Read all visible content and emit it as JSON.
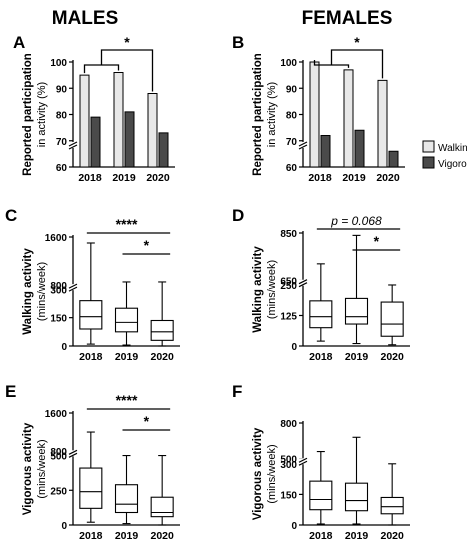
{
  "figure": {
    "column_titles": [
      "MALES",
      "FEMALES"
    ],
    "legend": [
      {
        "label": "Walking",
        "color": "#e8e8e8"
      },
      {
        "label": "Vigorous",
        "color": "#4a4a4a"
      }
    ]
  },
  "chart_data": [
    {
      "panel": "A",
      "type": "bar",
      "ylabel": "Reported participation",
      "ylabel2": "in activity (%)",
      "categories": [
        "2018",
        "2019",
        "2020"
      ],
      "ylim": [
        60,
        100
      ],
      "yticks": [
        "60",
        "70",
        "80",
        "90",
        "100"
      ],
      "series": [
        {
          "name": "Walking",
          "values": [
            95,
            96,
            88
          ]
        },
        {
          "name": "Vigorous",
          "values": [
            79,
            81,
            73
          ]
        }
      ],
      "annotations": [
        {
          "text": "*"
        }
      ]
    },
    {
      "panel": "B",
      "type": "bar",
      "ylabel": "Reported participation",
      "ylabel2": "in activity (%)",
      "categories": [
        "2018",
        "2019",
        "2020"
      ],
      "ylim": [
        60,
        100
      ],
      "yticks": [
        "60",
        "70",
        "80",
        "90",
        "100"
      ],
      "series": [
        {
          "name": "Walking",
          "values": [
            100,
            97,
            93
          ]
        },
        {
          "name": "Vigorous",
          "values": [
            72,
            74,
            66
          ]
        }
      ],
      "annotations": [
        {
          "text": "*"
        }
      ]
    },
    {
      "panel": "C",
      "type": "box",
      "ylabel": "Walking activity",
      "ylabel2": "(mins/week)",
      "categories": [
        "2018",
        "2019",
        "2020"
      ],
      "yticks": [
        "0",
        "150",
        "300",
        "800",
        "1600"
      ],
      "boxes": [
        {
          "min": 10,
          "q1": 90,
          "median": 155,
          "q3": 240,
          "max": 1500
        },
        {
          "min": 5,
          "q1": 75,
          "median": 125,
          "q3": 200,
          "max": 850
        },
        {
          "min": 0,
          "q1": 30,
          "median": 75,
          "q3": 135,
          "max": 850
        }
      ],
      "annotations": [
        {
          "text": "****"
        },
        {
          "text": "*"
        }
      ]
    },
    {
      "panel": "D",
      "type": "box",
      "ylabel": "Walking activity",
      "ylabel2": "(mins/week)",
      "categories": [
        "2018",
        "2019",
        "2020"
      ],
      "yticks": [
        "0",
        "125",
        "250",
        "650",
        "850"
      ],
      "boxes": [
        {
          "min": 20,
          "q1": 75,
          "median": 120,
          "q3": 185,
          "max": 720
        },
        {
          "min": 10,
          "q1": 90,
          "median": 120,
          "q3": 195,
          "max": 840
        },
        {
          "min": 5,
          "q1": 40,
          "median": 90,
          "q3": 180,
          "max": 600
        }
      ],
      "annotations": [
        {
          "text": "p = 0.068"
        },
        {
          "text": "*"
        }
      ]
    },
    {
      "panel": "E",
      "type": "box",
      "ylabel": "Vigorous activity",
      "ylabel2": "(mins/week)",
      "categories": [
        "2018",
        "2019",
        "2020"
      ],
      "yticks": [
        "0",
        "250",
        "500",
        "800",
        "1600"
      ],
      "boxes": [
        {
          "min": 20,
          "q1": 120,
          "median": 240,
          "q3": 410,
          "max": 1200
        },
        {
          "min": 10,
          "q1": 90,
          "median": 150,
          "q3": 290,
          "max": 650
        },
        {
          "min": 0,
          "q1": 60,
          "median": 90,
          "q3": 200,
          "max": 650
        }
      ],
      "annotations": [
        {
          "text": "****"
        },
        {
          "text": "*"
        }
      ]
    },
    {
      "panel": "F",
      "type": "box",
      "ylabel": "Vigorous activity",
      "ylabel2": "(mins/week)",
      "categories": [
        "2018",
        "2019",
        "2020"
      ],
      "yticks": [
        "0",
        "150",
        "300",
        "500",
        "800"
      ],
      "boxes": [
        {
          "min": 5,
          "q1": 75,
          "median": 125,
          "q3": 215,
          "max": 560
        },
        {
          "min": 5,
          "q1": 70,
          "median": 120,
          "q3": 205,
          "max": 680
        },
        {
          "min": 0,
          "q1": 55,
          "median": 90,
          "q3": 135,
          "max": 420
        }
      ],
      "annotations": [
        {
          "text": ""
        },
        {
          "text": ""
        }
      ]
    }
  ]
}
